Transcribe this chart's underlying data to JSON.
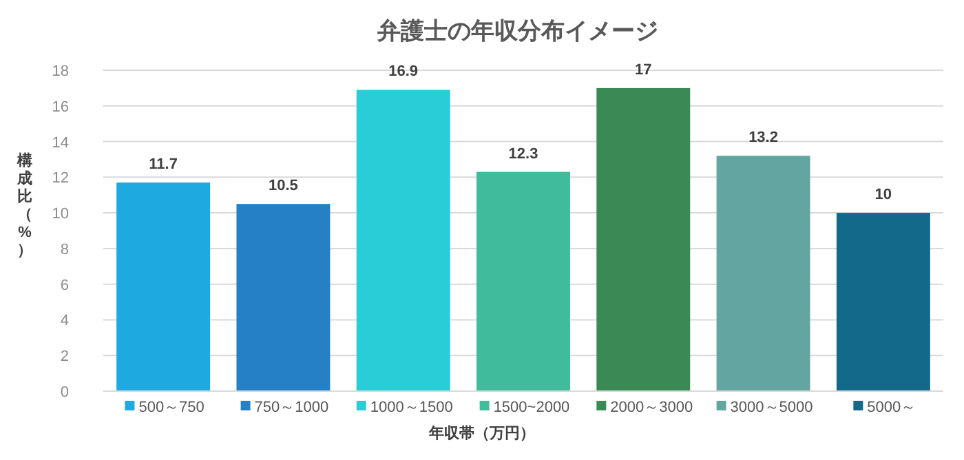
{
  "chart_data": {
    "type": "bar",
    "title": "弁護士の年収分布イメージ",
    "xlabel": "年収帯（万円）",
    "ylabel": "構成比（%）",
    "categories": [
      "500～750",
      "750～1000",
      "1000～1500",
      "1500~2000",
      "2000～3000",
      "3000～5000",
      "5000～"
    ],
    "values": [
      11.7,
      10.5,
      16.9,
      12.3,
      17,
      13.2,
      10
    ],
    "colors": [
      "#1ea9e1",
      "#2580c6",
      "#28cdd8",
      "#40bb9b",
      "#3b8a55",
      "#63a5a1",
      "#12698a"
    ],
    "ylim": [
      0,
      18
    ],
    "yticks": [
      0,
      2,
      4,
      6,
      8,
      10,
      12,
      14,
      16,
      18
    ],
    "grid": "y",
    "data_labels": true
  }
}
